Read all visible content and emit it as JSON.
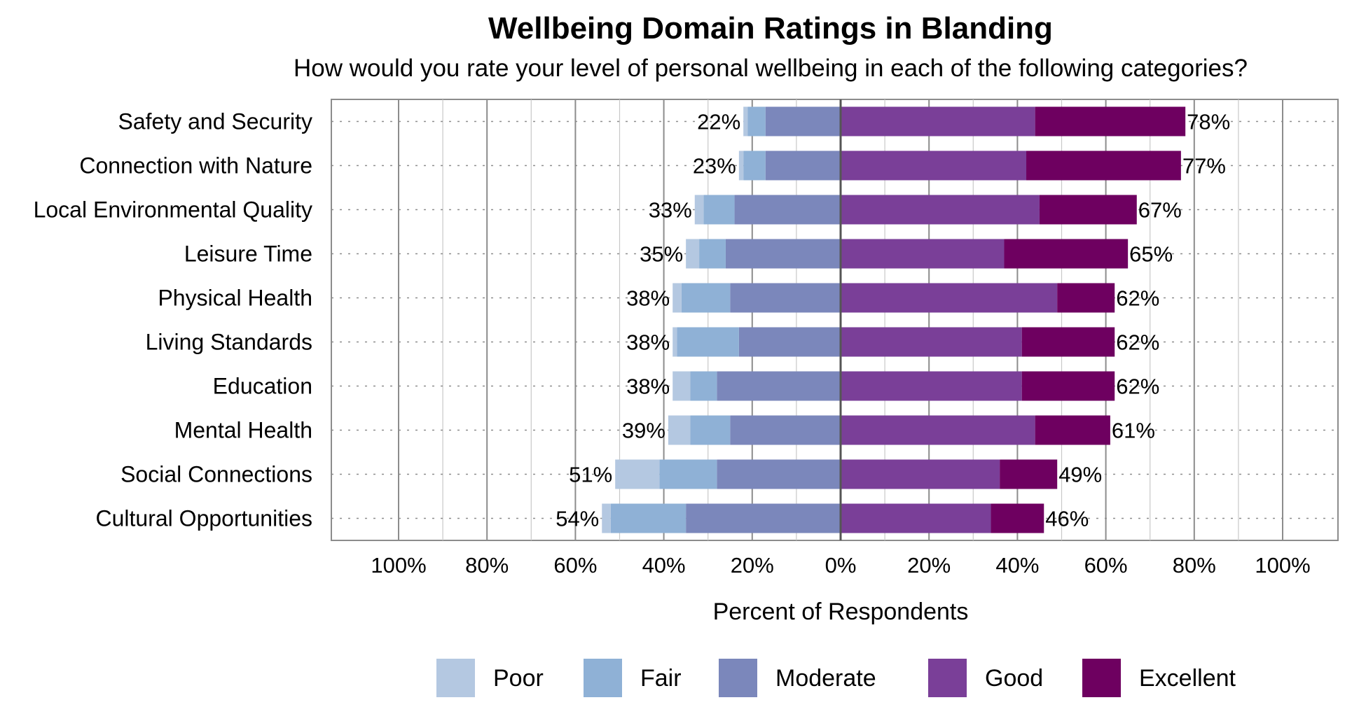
{
  "title": "Wellbeing Domain Ratings in Blanding",
  "subtitle": "How would you rate your level of personal wellbeing in each of the following categories?",
  "chart_data": {
    "type": "bar",
    "orientation": "horizontal-diverging",
    "xlabel": "Percent of Respondents",
    "x_tick_labels": [
      "100%",
      "80%",
      "60%",
      "40%",
      "20%",
      "0%",
      "20%",
      "40%",
      "60%",
      "80%",
      "100%"
    ],
    "xlim": [
      -100,
      100
    ],
    "grid": true,
    "legend_position": "bottom",
    "categories": [
      "Safety and Security",
      "Connection with Nature",
      "Local Environmental Quality",
      "Leisure Time",
      "Physical Health",
      "Living Standards",
      "Education",
      "Mental Health",
      "Social Connections",
      "Cultural Opportunities"
    ],
    "series": [
      {
        "name": "Poor",
        "color": "#b4c8e1",
        "side": "negative",
        "values": [
          1,
          1,
          2,
          3,
          2,
          1,
          4,
          5,
          10,
          2
        ]
      },
      {
        "name": "Fair",
        "color": "#8fb1d6",
        "side": "negative",
        "values": [
          4,
          5,
          7,
          6,
          11,
          14,
          6,
          9,
          13,
          17
        ]
      },
      {
        "name": "Moderate",
        "color": "#7b87bb",
        "side": "negative",
        "values": [
          17,
          17,
          24,
          26,
          25,
          23,
          28,
          25,
          28,
          35
        ]
      },
      {
        "name": "Good",
        "color": "#7a3f98",
        "side": "positive",
        "values": [
          44,
          42,
          45,
          37,
          49,
          41,
          41,
          44,
          36,
          34
        ]
      },
      {
        "name": "Excellent",
        "color": "#6e0060",
        "side": "positive",
        "values": [
          34,
          35,
          22,
          28,
          13,
          21,
          21,
          17,
          13,
          12
        ]
      }
    ],
    "negative_totals": [
      "22%",
      "23%",
      "33%",
      "35%",
      "38%",
      "38%",
      "38%",
      "39%",
      "51%",
      "54%"
    ],
    "positive_totals": [
      "78%",
      "77%",
      "67%",
      "65%",
      "62%",
      "62%",
      "62%",
      "61%",
      "49%",
      "46%"
    ]
  }
}
